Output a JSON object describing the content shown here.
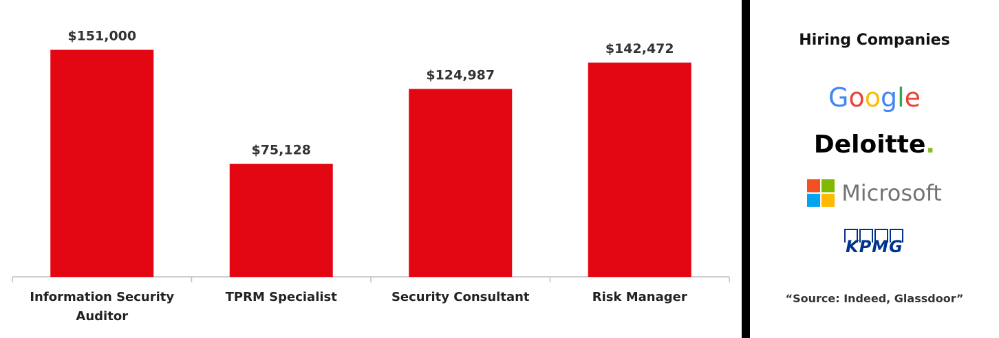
{
  "chart_data": {
    "type": "bar",
    "categories": [
      "Information Security Auditor",
      "TPRM Specialist",
      "Security Consultant",
      "Risk Manager"
    ],
    "category_lines": [
      [
        "Information Security",
        "Auditor"
      ],
      [
        "TPRM Specialist"
      ],
      [
        "Security Consultant"
      ],
      [
        "Risk Manager"
      ]
    ],
    "values": [
      151000,
      75128,
      124987,
      142472
    ],
    "value_labels": [
      "$151,000",
      "$75,128",
      "$124,987",
      "$142,472"
    ],
    "ylim": [
      0,
      175000
    ],
    "grid": false,
    "bar_color": "#e30613",
    "title": "",
    "xlabel": "",
    "ylabel": ""
  },
  "sidebar": {
    "title": "Hiring Companies",
    "logos": {
      "google": "Google",
      "deloitte": "Deloitte",
      "deloitte_dot": ".",
      "microsoft": "Microsoft",
      "kpmg": "KPMG"
    },
    "source": "“Source: Indeed, Glassdoor”"
  },
  "colors": {
    "google": [
      "#4285F4",
      "#EA4335",
      "#FBBC05",
      "#4285F4",
      "#34A853",
      "#EA4335"
    ],
    "microsoft": [
      "#F25022",
      "#7FBA00",
      "#00A4EF",
      "#FFB900"
    ],
    "kpmg": "#00338d",
    "deloitte_dot": "#86bc25"
  }
}
